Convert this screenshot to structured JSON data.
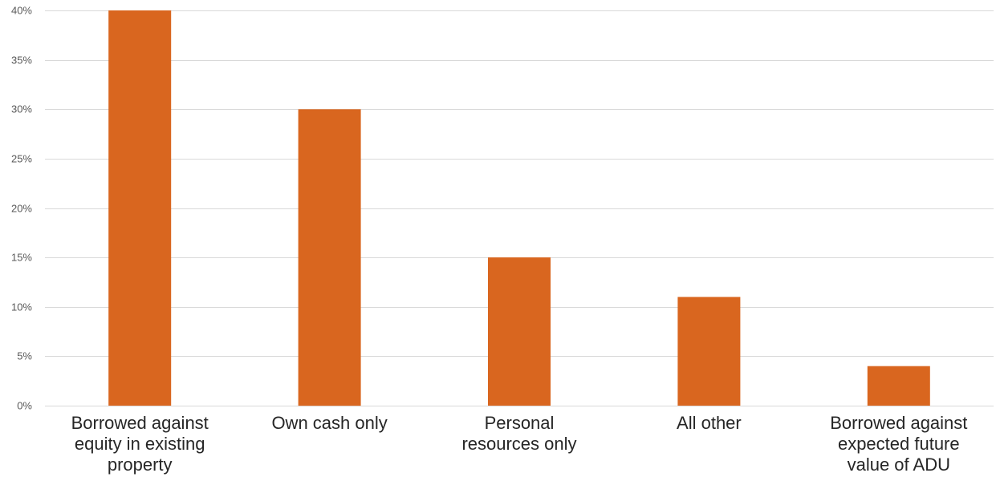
{
  "chart_data": {
    "type": "bar",
    "title": "",
    "xlabel": "",
    "ylabel": "",
    "categories": [
      "Borrowed against equity in existing property",
      "Own cash only",
      "Personal resources only",
      "All other",
      "Borrowed against expected future value of ADU"
    ],
    "category_label_lines": [
      [
        "Borrowed against",
        "equity in existing",
        "property"
      ],
      [
        "Own cash only"
      ],
      [
        "Personal",
        "resources only"
      ],
      [
        "All other"
      ],
      [
        "Borrowed against",
        "expected future",
        "value of ADU"
      ]
    ],
    "values": [
      40,
      30,
      15,
      11,
      4
    ],
    "ylim": [
      0,
      40
    ],
    "yticks": [
      0,
      5,
      10,
      15,
      20,
      25,
      30,
      35,
      40
    ],
    "ytick_labels": [
      "0%",
      "5%",
      "10%",
      "15%",
      "20%",
      "25%",
      "30%",
      "35%",
      "40%"
    ],
    "grid": true,
    "legend": "none",
    "bar_color": "#d9661f"
  }
}
